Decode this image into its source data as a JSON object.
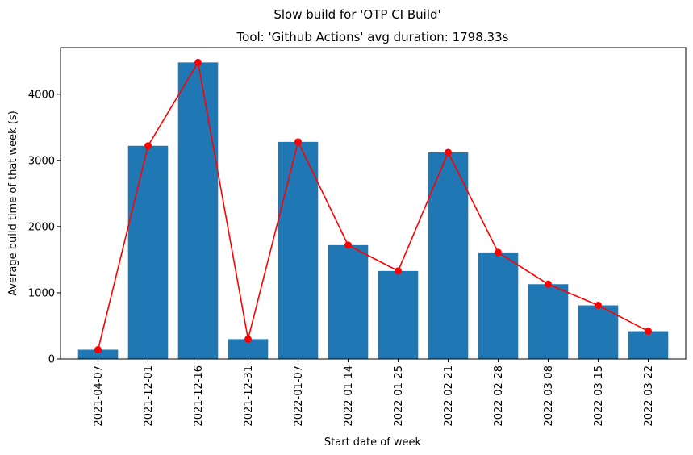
{
  "chart_data": {
    "type": "bar",
    "suptitle": "Slow build for 'OTP CI Build'",
    "title": "Tool: 'Github Actions' avg duration: 1798.33s",
    "xlabel": "Start date of week",
    "ylabel": "Average build time of that week (s)",
    "categories": [
      "2021-04-07",
      "2021-12-01",
      "2021-12-16",
      "2021-12-31",
      "2022-01-07",
      "2022-01-14",
      "2022-01-25",
      "2022-02-21",
      "2022-02-28",
      "2022-03-08",
      "2022-03-15",
      "2022-03-22"
    ],
    "series": [
      {
        "type": "bar",
        "color": "#1f77b4",
        "values": [
          140,
          3220,
          4480,
          300,
          3280,
          1720,
          1330,
          3120,
          1610,
          1130,
          810,
          420
        ]
      },
      {
        "type": "line",
        "color": "#ff0000",
        "marker": "circle",
        "values": [
          140,
          3220,
          4480,
          300,
          3280,
          1720,
          1330,
          3120,
          1610,
          1130,
          810,
          420
        ]
      }
    ],
    "yticks": [
      0,
      1000,
      2000,
      3000,
      4000
    ],
    "ylim": [
      0,
      4704
    ],
    "grid": false,
    "legend": "none"
  }
}
